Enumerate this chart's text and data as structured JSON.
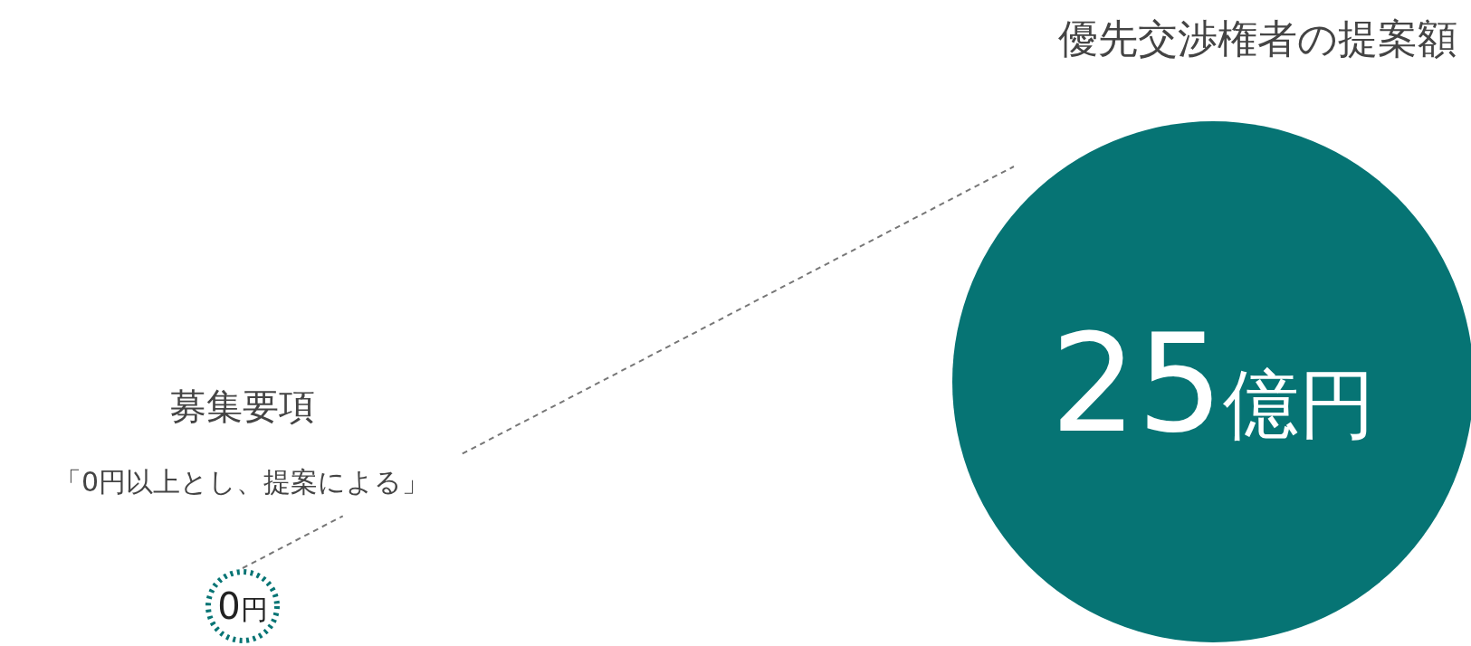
{
  "chart_data": {
    "type": "other",
    "categories": [
      "募集要項",
      "優先交渉権者の提案額"
    ],
    "values": [
      0,
      25
    ],
    "value_labels": [
      "0円",
      "25億円"
    ],
    "colors": [
      "#067474",
      "#067474"
    ],
    "annotations": [
      "「0円以上とし、提案による」"
    ]
  }
}
